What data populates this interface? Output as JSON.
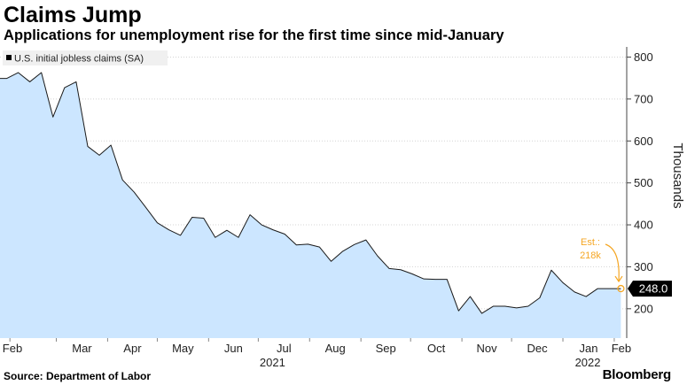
{
  "header": {
    "title": "Claims Jump",
    "subtitle": "Applications for unemployment rise for the first time since mid-January"
  },
  "footer": {
    "source": "Source: Department of Labor",
    "brand": "Bloomberg"
  },
  "colors": {
    "area_fill": "#cce6ff",
    "line": "#1a1a1a",
    "annotation": "#f5a623",
    "last_value_bg": "#000000",
    "legend_bg": "#f0f0f0"
  },
  "chart_data": {
    "type": "area",
    "title": "Claims Jump",
    "subtitle": "Applications for unemployment rise for the first time since mid-January",
    "ylabel": "Thousands",
    "xlabel": "",
    "y_axis_side": "right",
    "ylim": [
      130,
      820
    ],
    "yticks": [
      200,
      300,
      400,
      500,
      600,
      700,
      800
    ],
    "x_ticks": [
      "Feb",
      "Mar",
      "Apr",
      "May",
      "Jun",
      "Jul",
      "Aug",
      "Sep",
      "Oct",
      "Nov",
      "Dec",
      "Jan",
      "Feb"
    ],
    "x_year_labels": [
      "2021",
      "2022"
    ],
    "legend": {
      "entries": [
        "U.S. initial jobless claims (SA)"
      ],
      "placement": "top-left"
    },
    "grid": true,
    "series": [
      {
        "name": "U.S. initial jobless claims (SA)",
        "x": [
          "2021-01-30",
          "2021-02-06",
          "2021-02-13",
          "2021-02-20",
          "2021-02-27",
          "2021-03-06",
          "2021-03-13",
          "2021-03-20",
          "2021-03-27",
          "2021-04-03",
          "2021-04-10",
          "2021-04-17",
          "2021-04-24",
          "2021-05-01",
          "2021-05-08",
          "2021-05-15",
          "2021-05-22",
          "2021-05-29",
          "2021-06-05",
          "2021-06-12",
          "2021-06-19",
          "2021-06-26",
          "2021-07-03",
          "2021-07-10",
          "2021-07-17",
          "2021-07-24",
          "2021-07-31",
          "2021-08-07",
          "2021-08-14",
          "2021-08-21",
          "2021-08-28",
          "2021-09-04",
          "2021-09-11",
          "2021-09-18",
          "2021-09-25",
          "2021-10-02",
          "2021-10-09",
          "2021-10-16",
          "2021-10-23",
          "2021-10-30",
          "2021-11-06",
          "2021-11-13",
          "2021-11-20",
          "2021-11-27",
          "2021-12-04",
          "2021-12-11",
          "2021-12-18",
          "2021-12-25",
          "2022-01-01",
          "2022-01-08",
          "2022-01-15",
          "2022-01-22",
          "2022-01-29",
          "2022-02-05"
        ],
        "values": [
          749,
          763,
          741,
          763,
          657,
          727,
          741,
          587,
          566,
          590,
          507,
          478,
          442,
          405,
          388,
          375,
          418,
          416,
          370,
          387,
          370,
          424,
          400,
          388,
          378,
          352,
          354,
          347,
          313,
          337,
          353,
          364,
          326,
          296,
          293,
          283,
          271,
          270,
          270,
          195,
          229,
          189,
          206,
          206,
          202,
          206,
          226,
          292,
          262,
          240,
          229,
          248,
          248,
          248
        ]
      }
    ],
    "annotations": [
      {
        "text_line1": "Est.:",
        "text_line2": "218k",
        "arrow_to": "2022-02-05"
      }
    ],
    "last_value_label": "248.0"
  }
}
